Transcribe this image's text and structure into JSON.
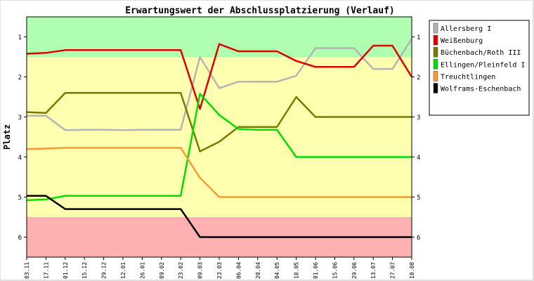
{
  "chart_data": {
    "type": "line",
    "title": "Erwartungswert der Abschlussplatzierung (Verlauf)",
    "xlabel": "",
    "ylabel": "Platz",
    "y_inverted": true,
    "ylim": [
      0.5,
      6.5
    ],
    "yticks": [
      1,
      2,
      3,
      4,
      5,
      6
    ],
    "grid": false,
    "legend_position": "right",
    "zones": [
      {
        "from": 0.5,
        "to": 1.5,
        "color": "#b0ffb0"
      },
      {
        "from": 1.5,
        "to": 5.5,
        "color": "#ffffb0"
      },
      {
        "from": 5.5,
        "to": 6.5,
        "color": "#ffb0b0"
      }
    ],
    "categories": [
      "03.11",
      "17.11",
      "01.12",
      "15.12",
      "29.12",
      "12.01",
      "26.01",
      "09.02",
      "23.02",
      "09.03",
      "23.03",
      "06.04",
      "20.04",
      "04.05",
      "18.05",
      "01.06",
      "15.06",
      "29.06",
      "13.07",
      "27.07",
      "10.08"
    ],
    "series": [
      {
        "name": "Allersberg I",
        "color": "#b4b4b4",
        "values": [
          2.97,
          2.97,
          3.33,
          3.32,
          3.32,
          3.33,
          3.32,
          3.32,
          3.32,
          1.5,
          2.28,
          2.12,
          2.12,
          2.12,
          1.97,
          1.28,
          1.28,
          1.28,
          1.8,
          1.8,
          1.05
        ]
      },
      {
        "name": "Weißenburg",
        "color": "#e00000",
        "values": [
          1.42,
          1.4,
          1.33,
          1.33,
          1.33,
          1.33,
          1.33,
          1.33,
          1.33,
          2.8,
          1.18,
          1.36,
          1.36,
          1.36,
          1.6,
          1.75,
          1.75,
          1.75,
          1.22,
          1.22,
          2.0
        ]
      },
      {
        "name": "Büchenbach/Roth III",
        "color": "#7a7a00",
        "values": [
          2.88,
          2.9,
          2.4,
          2.4,
          2.4,
          2.4,
          2.4,
          2.4,
          2.4,
          3.86,
          3.62,
          3.25,
          3.25,
          3.25,
          2.5,
          3.0,
          3.0,
          3.0,
          3.0,
          3.0,
          3.0
        ]
      },
      {
        "name": "Ellingen/Pleinfeld I",
        "color": "#00e000",
        "values": [
          5.08,
          5.06,
          4.97,
          4.97,
          4.97,
          4.97,
          4.97,
          4.97,
          4.97,
          2.42,
          2.95,
          3.3,
          3.32,
          3.32,
          4.0,
          4.0,
          4.0,
          4.0,
          4.0,
          4.0,
          4.0
        ]
      },
      {
        "name": "Treuchtlingen",
        "color": "#ff9933",
        "values": [
          3.8,
          3.79,
          3.77,
          3.77,
          3.77,
          3.77,
          3.77,
          3.77,
          3.77,
          4.52,
          5.0,
          5.0,
          5.0,
          5.0,
          5.0,
          5.0,
          5.0,
          5.0,
          5.0,
          5.0,
          5.0
        ]
      },
      {
        "name": "Wolframs-Eschenbach",
        "color": "#000000",
        "values": [
          4.97,
          4.97,
          5.3,
          5.3,
          5.3,
          5.3,
          5.3,
          5.3,
          5.3,
          6.0,
          6.0,
          6.0,
          6.0,
          6.0,
          6.0,
          6.0,
          6.0,
          6.0,
          6.0,
          6.0,
          6.0
        ]
      }
    ]
  }
}
